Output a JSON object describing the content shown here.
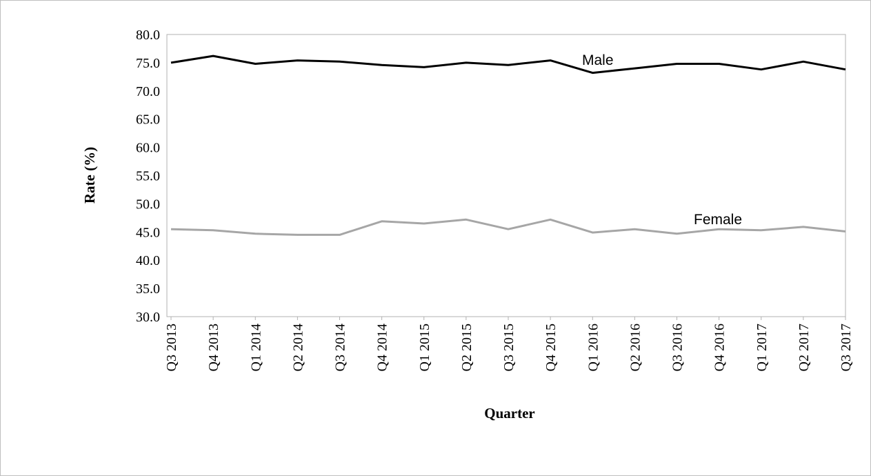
{
  "chart_data": {
    "type": "line",
    "title": "",
    "xlabel": "Quarter",
    "ylabel": "Rate (%)",
    "ylim": [
      30,
      80
    ],
    "y_tick_step": 5,
    "grid": false,
    "categories": [
      "Q3 2013",
      "Q4 2013",
      "Q1 2014",
      "Q2 2014",
      "Q3 2014",
      "Q4 2014",
      "Q1 2015",
      "Q2 2015",
      "Q3 2015",
      "Q4 2015",
      "Q1 2016",
      "Q2 2016",
      "Q3 2016",
      "Q4 2016",
      "Q1 2017",
      "Q2 2017",
      "Q3 2017"
    ],
    "y_ticks": [
      "30.0",
      "35.0",
      "40.0",
      "45.0",
      "50.0",
      "55.0",
      "60.0",
      "65.0",
      "70.0",
      "75.0",
      "80.0"
    ],
    "series": [
      {
        "name": "Male",
        "color": "#000000",
        "values": [
          75.0,
          76.2,
          74.8,
          75.4,
          75.2,
          74.6,
          74.2,
          75.0,
          74.6,
          75.4,
          73.2,
          74.0,
          74.8,
          74.8,
          73.8,
          75.2,
          73.8
        ]
      },
      {
        "name": "Female",
        "color": "#a6a6a6",
        "values": [
          45.5,
          45.3,
          44.7,
          44.5,
          44.5,
          46.9,
          46.5,
          47.2,
          45.5,
          47.2,
          44.9,
          45.5,
          44.7,
          45.5,
          45.3,
          45.9,
          45.1
        ]
      }
    ]
  }
}
